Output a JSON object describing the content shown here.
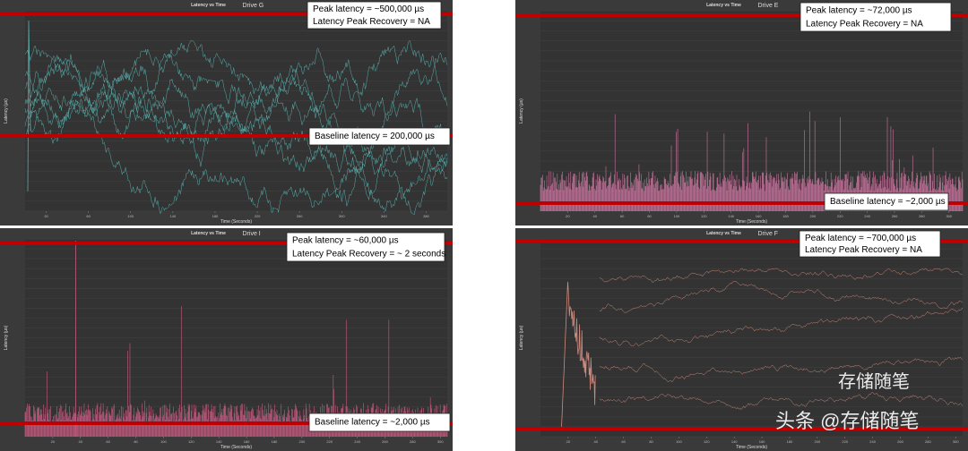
{
  "panels": [
    {
      "title": "Latency vs Time",
      "drive": "Drive G",
      "x_label": "Time (Seconds)",
      "y_label": "Latency (µs)",
      "peak": "Peak latency = ~500,000 µs",
      "recovery": "Latency Peak Recovery = NA",
      "baseline": "Baseline latency = 200,000 µs",
      "color": "#5cc3c0",
      "xlim": [
        0,
        400
      ],
      "xticks": [
        20,
        60,
        100,
        140,
        180,
        220,
        260,
        300,
        340,
        380
      ]
    },
    {
      "title": "Latency vs Time",
      "drive": "Drive E",
      "x_label": "Time (Seconds)",
      "y_label": "Latency (µs)",
      "peak": "Peak latency = ~72,000 µs",
      "recovery": "Latency Peak Recovery = NA",
      "baseline": "Baseline latency = ~2,000 µs",
      "color": "#e57fb2",
      "xlim": [
        0,
        310
      ],
      "xticks": [
        20,
        40,
        60,
        80,
        100,
        120,
        140,
        160,
        180,
        200,
        220,
        240,
        260,
        280,
        300
      ]
    },
    {
      "title": "Latency vs Time",
      "drive": "Drive I",
      "x_label": "Time (Seconds)",
      "y_label": "Latency (µs)",
      "peak": "Peak latency = ~60,000 µs",
      "recovery": "Latency Peak Recovery = ~ 2 seconds",
      "baseline": "Baseline latency = ~2,000 µs",
      "color": "#e2628f",
      "xlim": [
        0,
        305
      ],
      "xticks": [
        20,
        40,
        60,
        80,
        100,
        120,
        140,
        160,
        180,
        200,
        220,
        240,
        260,
        280,
        300
      ]
    },
    {
      "title": "Latency vs Time",
      "drive": "Drive F",
      "x_label": "Time (Seconds)",
      "y_label": "Latency (µs)",
      "peak": "Peak latency = ~700,000 µs",
      "recovery": "Latency Peak Recovery = NA",
      "color": "#e89a8c",
      "xlim": [
        0,
        305
      ],
      "xticks": [
        20,
        40,
        60,
        80,
        100,
        120,
        140,
        160,
        180,
        200,
        220,
        240,
        260,
        280,
        300
      ]
    }
  ],
  "watermark": {
    "top": "存储随笔",
    "bottom": "头条 @存储随笔"
  }
}
